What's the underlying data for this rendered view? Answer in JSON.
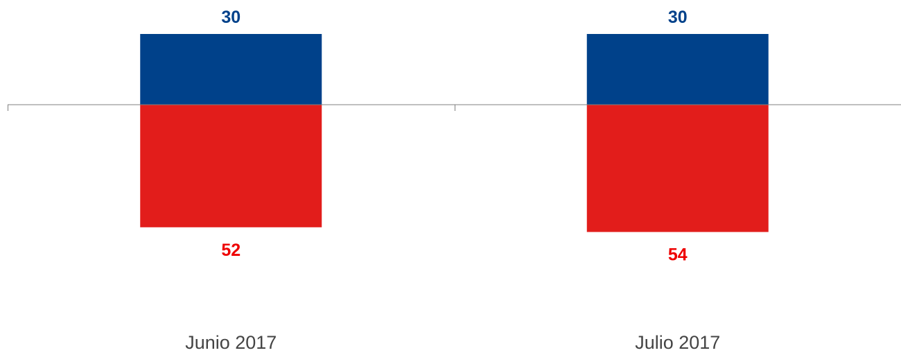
{
  "chart_data": {
    "type": "bar",
    "stacked": "diverging",
    "categories": [
      "Junio 2017",
      "Julio 2017"
    ],
    "series": [
      {
        "values": [
          30,
          30
        ],
        "color": "#00418a",
        "label_color": "#00418a"
      },
      {
        "values": [
          -52,
          -54
        ],
        "color": "#e21d1b",
        "label_color": "#ee0000"
      }
    ],
    "data_labels": {
      "positive": [
        "30",
        "30"
      ],
      "negative": [
        "52",
        "54"
      ]
    },
    "axis_color": "#7f7f7f",
    "grid": false,
    "legend": "none"
  }
}
